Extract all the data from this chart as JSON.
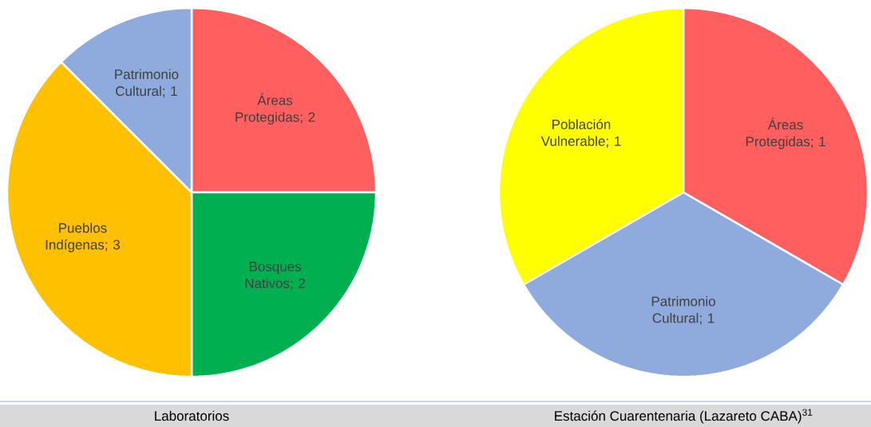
{
  "chart_data": [
    {
      "type": "pie",
      "title": "Laboratorios",
      "data_labels": true,
      "categories": [
        "Áreas Protegidas",
        "Bosques Nativos",
        "Pueblos Indígenas",
        "Patrimonio Cultural"
      ],
      "values": [
        2,
        2,
        3,
        1
      ],
      "value_labels": [
        "; 2",
        "; 2",
        "; 3",
        "; 1"
      ],
      "colors": [
        "#ff5f5f",
        "#00b050",
        "#ffc000",
        "#8faadc"
      ]
    },
    {
      "type": "pie",
      "title": "Estación Cuarentenaria (Lazareto CABA)$^{31}$",
      "data_labels": true,
      "categories": [
        "Áreas Protegidas",
        "Patrimonio Cultural",
        "Población Vulnerable"
      ],
      "values": [
        1,
        1,
        1
      ],
      "value_labels": [
        "; 1",
        "; 1",
        "; 1"
      ],
      "colors": [
        "#ff5f5f",
        "#8faadc",
        "#ffff00"
      ]
    }
  ]
}
